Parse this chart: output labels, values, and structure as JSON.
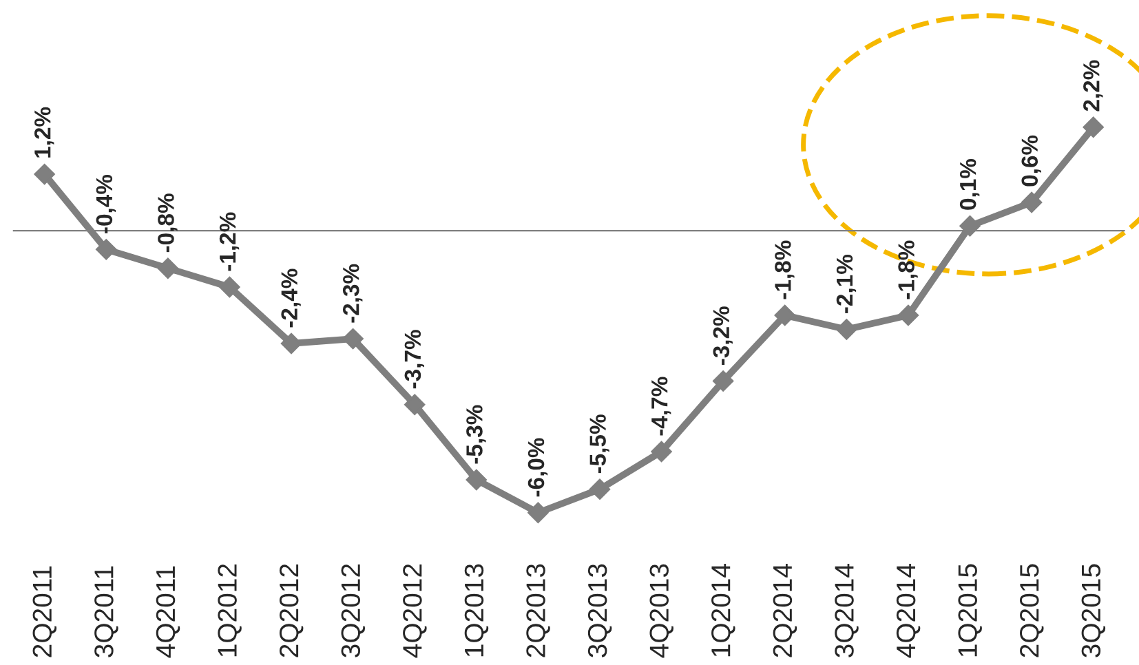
{
  "chart_data": {
    "type": "line",
    "categories": [
      "2Q2011",
      "3Q2011",
      "4Q2011",
      "1Q2012",
      "2Q2012",
      "3Q2012",
      "4Q2012",
      "1Q2013",
      "2Q2013",
      "3Q2013",
      "4Q2013",
      "1Q2014",
      "2Q2014",
      "3Q2014",
      "4Q2014",
      "1Q2015",
      "2Q2015",
      "3Q2015"
    ],
    "series": [
      {
        "color": "#7f7f7f",
        "values": [
          1.2,
          -0.4,
          -0.8,
          -1.2,
          -2.4,
          -2.3,
          -3.7,
          -5.3,
          -6.0,
          -5.5,
          -4.7,
          -3.2,
          -1.8,
          -2.1,
          -1.8,
          0.1,
          0.6,
          2.2
        ],
        "value_labels": [
          "1,2%",
          "-0,4%",
          "-0,8%",
          "-1,2%",
          "-2,4%",
          "-2,3%",
          "-3,7%",
          "-5,3%",
          "-6,0%",
          "-5,5%",
          "-4,7%",
          "-3,2%",
          "-1,8%",
          "-2,1%",
          "-1,8%",
          "0,1%",
          "0,6%",
          "2,2%"
        ]
      }
    ],
    "marker": "diamond",
    "line_style": "solid",
    "legend": false
  }
}
